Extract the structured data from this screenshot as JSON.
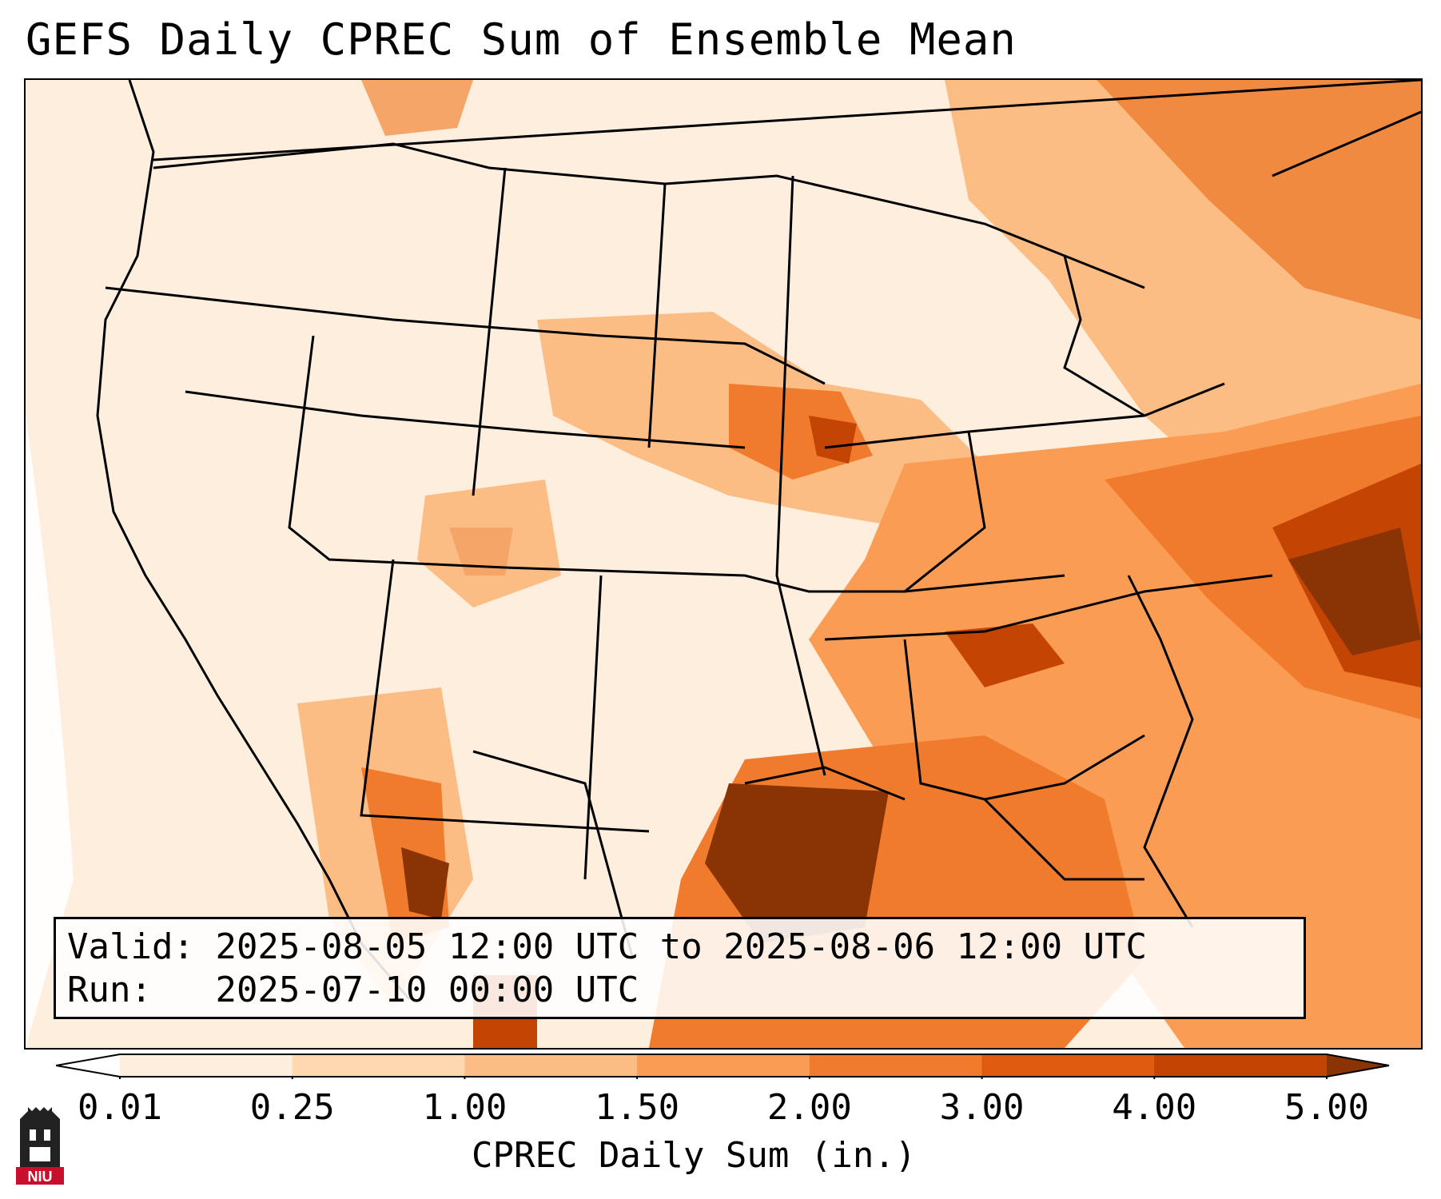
{
  "title": "GEFS Daily CPREC Sum of Ensemble Mean",
  "info": {
    "valid_label": "Valid:",
    "valid_value": "2025-08-05 12:00 UTC to 2025-08-06 12:00 UTC",
    "run_label": "Run:",
    "run_value": "2025-07-10 00:00 UTC"
  },
  "colorbar": {
    "label": "CPREC Daily Sum (in.)",
    "ticks": [
      "0.01",
      "0.25",
      "1.00",
      "1.50",
      "2.00",
      "3.00",
      "4.00",
      "5.00"
    ],
    "colors": [
      "#fdeedd",
      "#fdd8b0",
      "#fcbd85",
      "#fb9c54",
      "#f07b2c",
      "#e05b0f",
      "#c44404",
      "#8a3305"
    ],
    "extend": "both"
  },
  "logo": {
    "text": "NIU",
    "color": "#c8102e"
  }
}
